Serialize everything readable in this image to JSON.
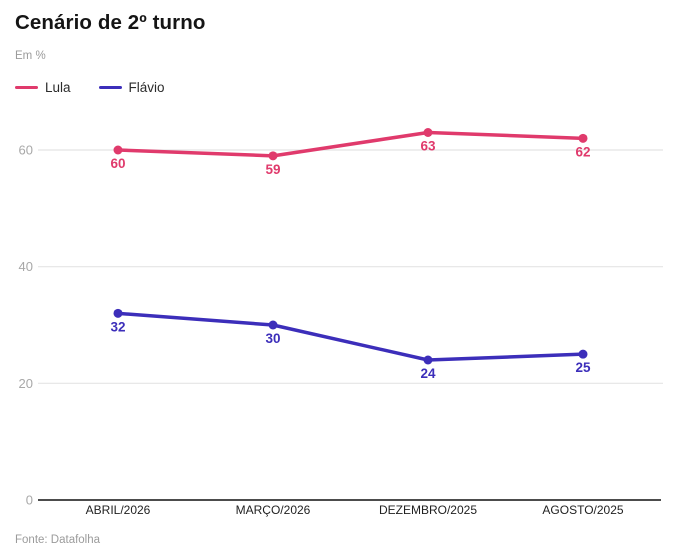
{
  "header": {
    "title": "Cenário de 2º turno",
    "subtitle": "Em %"
  },
  "source": "Fonte: Datafolha",
  "colors": {
    "lula": "#e03a6c",
    "flavio": "#3c2eba",
    "gridline": "#e4e4e4",
    "baseline": "#111111",
    "ytick_label": "#a8a8a8",
    "xtick_label": "#1f1f1f"
  },
  "chart_data": {
    "type": "line",
    "title": "Cenário de 2º turno",
    "subtitle": "Em %",
    "categories": [
      "ABRIL/2026",
      "MARÇO/2026",
      "DEZEMBRO/2025",
      "AGOSTO/2025"
    ],
    "series": [
      {
        "name": "Lula",
        "color": "#e03a6c",
        "values": [
          60,
          59,
          63,
          62
        ]
      },
      {
        "name": "Flávio",
        "color": "#3c2eba",
        "values": [
          32,
          30,
          24,
          25
        ]
      }
    ],
    "yticks": [
      0,
      20,
      40,
      60
    ],
    "ylim": [
      0,
      70
    ],
    "grid": true,
    "legend_position": "top-left",
    "xlabel": "",
    "ylabel": ""
  }
}
